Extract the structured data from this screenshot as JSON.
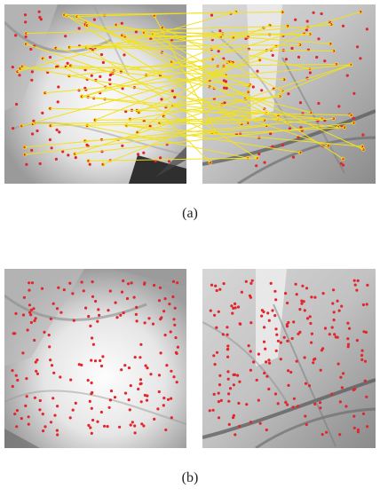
{
  "figure": {
    "caption_a": "(a)",
    "caption_b": "(b)"
  },
  "colors": {
    "keypoint": "#e3262b",
    "match_line": "#f2e218",
    "palm_light": "#f4f4f4",
    "palm_mid": "#b9b9b9",
    "palm_dark": "#5a5a5a",
    "background": "#ffffff"
  }
}
